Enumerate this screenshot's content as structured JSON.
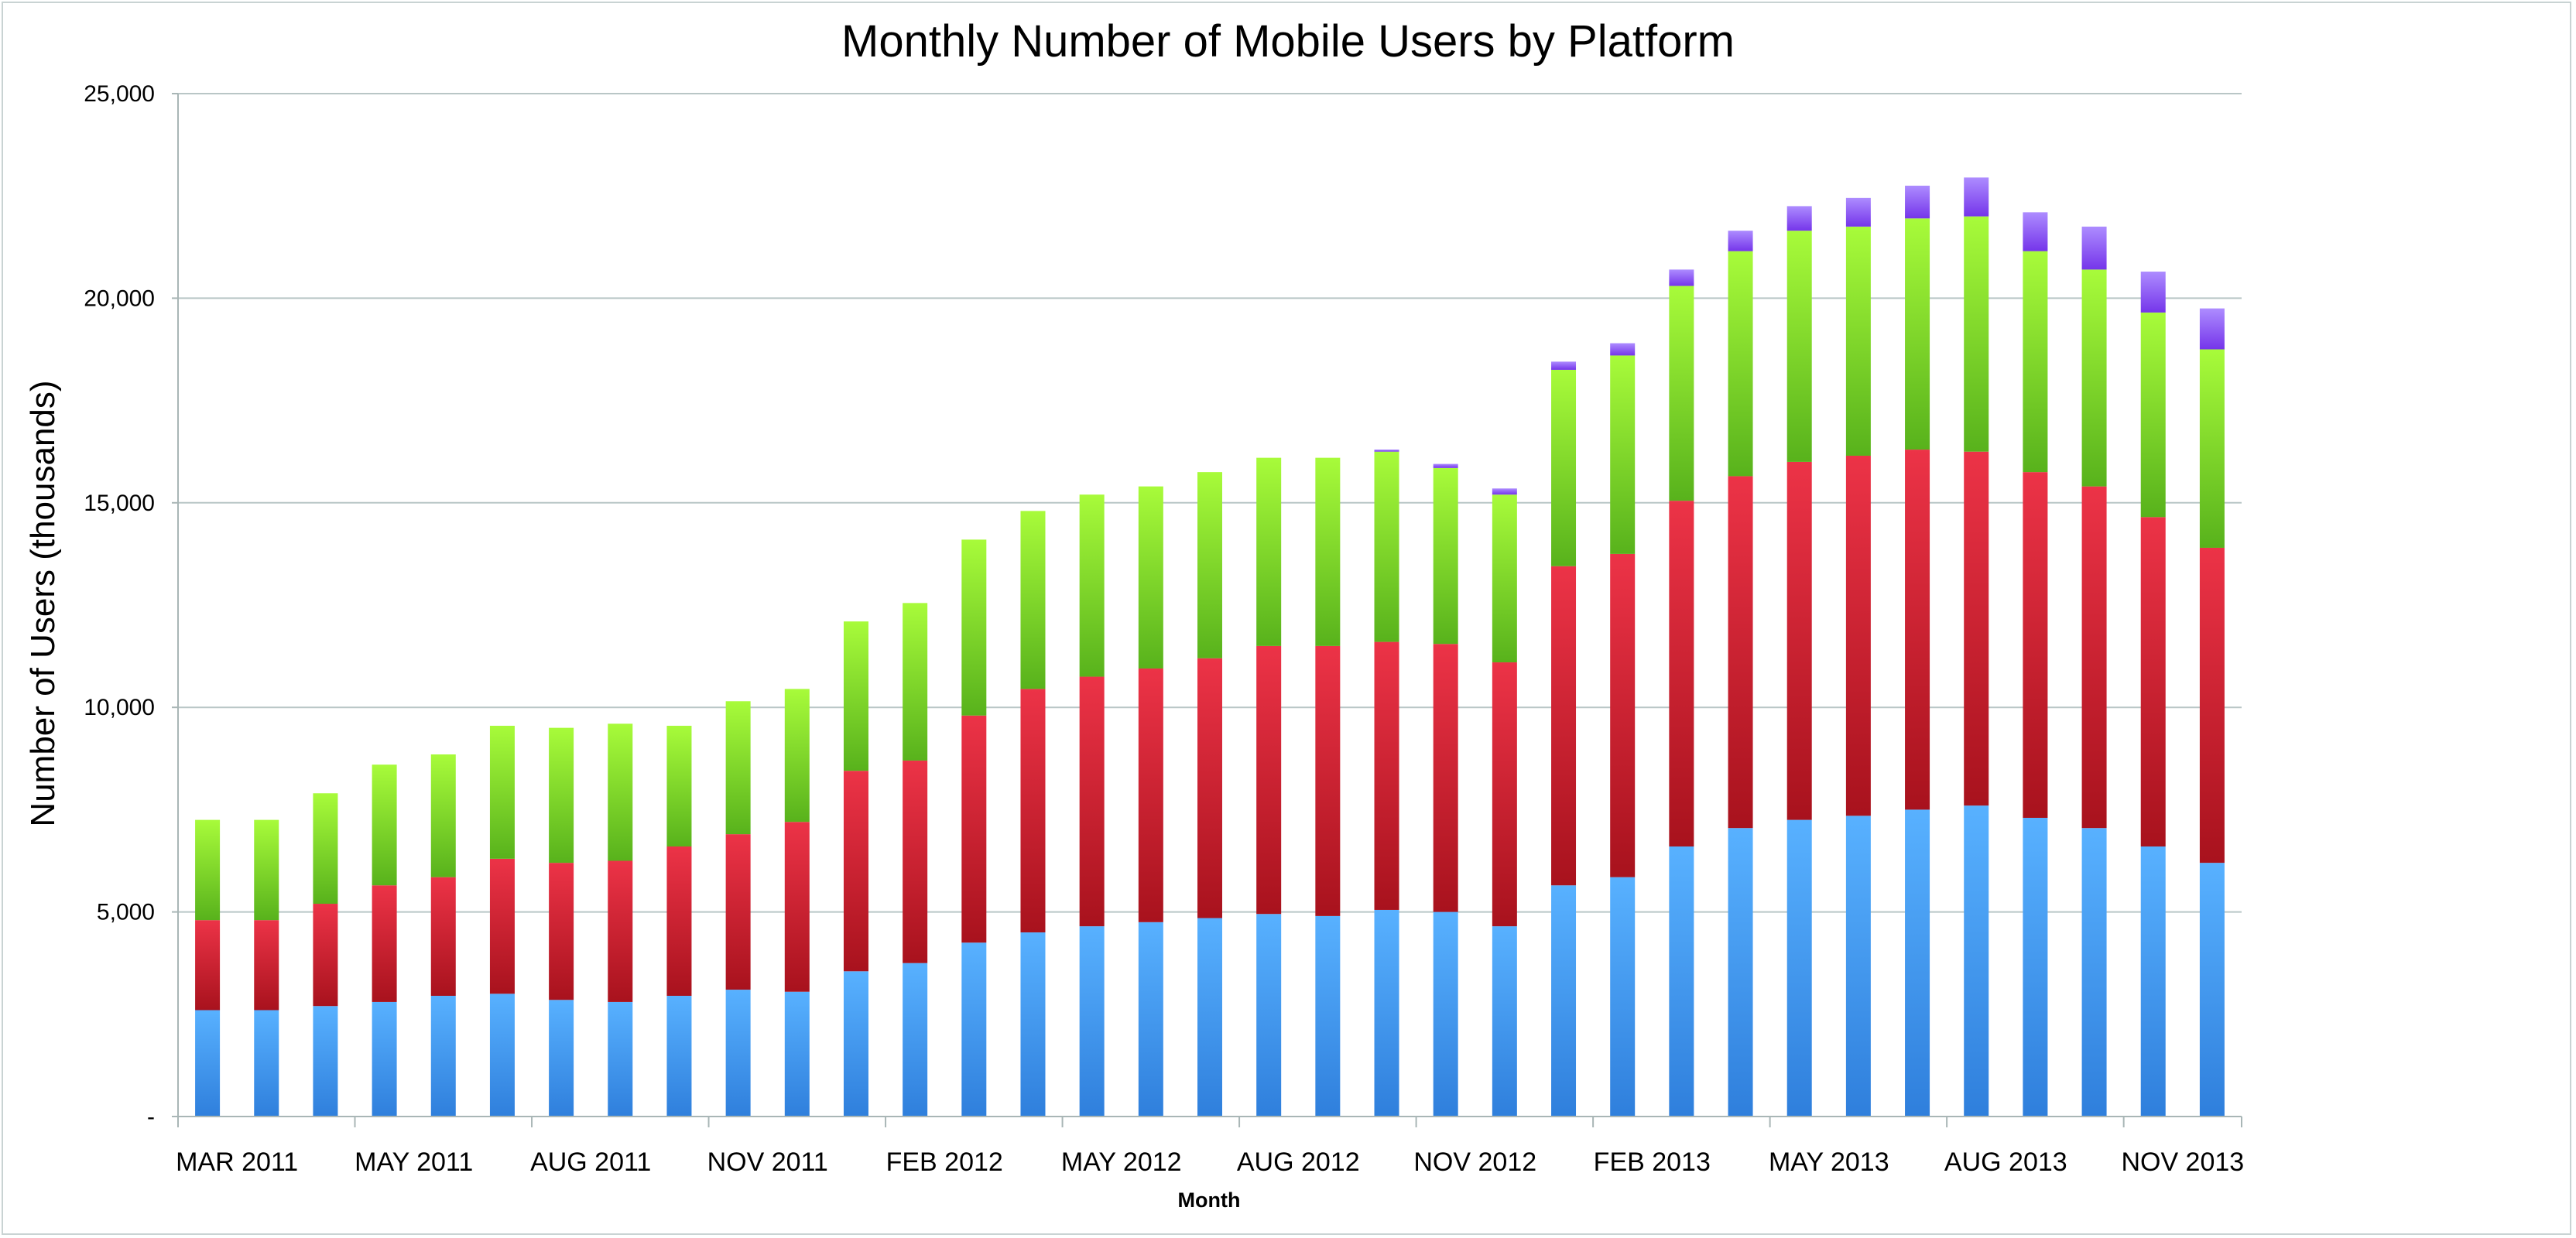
{
  "chart_data": {
    "type": "bar",
    "stacked": true,
    "title": "Monthly Number of Mobile Users by Platform",
    "xlabel": "Month",
    "ylabel": "Number of Users (thousands)",
    "ylim": [
      0,
      25000
    ],
    "y_ticks": [
      {
        "value": 0,
        "label": "-"
      },
      {
        "value": 5000,
        "label": "5,000"
      },
      {
        "value": 10000,
        "label": "10,000"
      },
      {
        "value": 15000,
        "label": "15,000"
      },
      {
        "value": 20000,
        "label": "20,000"
      },
      {
        "value": 25000,
        "label": "25,000"
      }
    ],
    "grid": true,
    "legend": "none",
    "x_tick_labels": [
      {
        "index": 0,
        "label": "MAR 2011"
      },
      {
        "index": 3,
        "label": "MAY 2011"
      },
      {
        "index": 6,
        "label": "AUG 2011"
      },
      {
        "index": 9,
        "label": "NOV 2011"
      },
      {
        "index": 12,
        "label": "FEB 2012"
      },
      {
        "index": 15,
        "label": "MAY 2012"
      },
      {
        "index": 18,
        "label": "AUG 2012"
      },
      {
        "index": 21,
        "label": "NOV 2012"
      },
      {
        "index": 24,
        "label": "FEB 2013"
      },
      {
        "index": 27,
        "label": "MAY 2013"
      },
      {
        "index": 30,
        "label": "AUG 2013"
      },
      {
        "index": 33,
        "label": "NOV 2013"
      }
    ],
    "series": [
      {
        "color_top": "#58b1ff",
        "color_bottom": "#2f7fdc",
        "values": [
          2600,
          2600,
          2700,
          2800,
          2950,
          3000,
          2850,
          2800,
          2950,
          3100,
          3050,
          3550,
          3750,
          4250,
          4500,
          4650,
          4750,
          4850,
          4950,
          4900,
          5050,
          5000,
          4650,
          5650,
          5850,
          6600,
          7050,
          7250,
          7350,
          7500,
          7600,
          7300,
          7050,
          6600,
          6200
        ]
      },
      {
        "color_top": "#ec3347",
        "color_bottom": "#a8121d",
        "values": [
          2200,
          2200,
          2500,
          2850,
          2900,
          3300,
          3350,
          3450,
          3650,
          3800,
          4150,
          4900,
          4950,
          5550,
          5950,
          6100,
          6200,
          6350,
          6550,
          6600,
          6550,
          6550,
          6450,
          7800,
          7900,
          8450,
          8600,
          8750,
          8800,
          8800,
          8650,
          8450,
          8350,
          8050,
          7700
        ]
      },
      {
        "color_top": "#a8fb3a",
        "color_bottom": "#58b21c",
        "values": [
          2450,
          2450,
          2700,
          2950,
          3000,
          3250,
          3300,
          3350,
          2950,
          3250,
          3250,
          3650,
          3850,
          4300,
          4350,
          4450,
          4450,
          4550,
          4600,
          4600,
          4650,
          4300,
          4100,
          4800,
          4850,
          5250,
          5500,
          5650,
          5600,
          5650,
          5750,
          5400,
          5300,
          5000,
          4850
        ]
      },
      {
        "color_top": "#ad8cff",
        "color_bottom": "#7535ea",
        "values": [
          0,
          0,
          0,
          0,
          0,
          0,
          0,
          0,
          0,
          0,
          0,
          0,
          0,
          0,
          0,
          0,
          0,
          0,
          0,
          0,
          50,
          100,
          150,
          200,
          300,
          400,
          500,
          600,
          700,
          800,
          950,
          950,
          1050,
          1000,
          1000
        ]
      }
    ]
  }
}
